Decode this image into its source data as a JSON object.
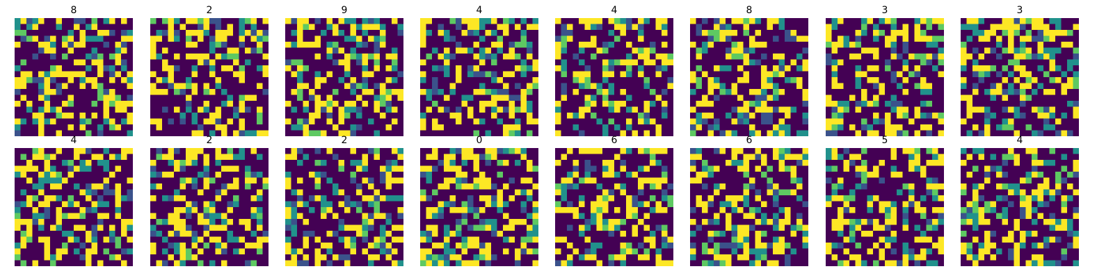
{
  "chart_data": {
    "type": "heatmap",
    "layout": "grid",
    "grid_rows": 2,
    "grid_cols": 8,
    "image_size": [
      20,
      20
    ],
    "colormap": "viridis",
    "colors": [
      "#440154",
      "#3b528b",
      "#21918c",
      "#5ec962",
      "#fde725"
    ],
    "axes": "off",
    "images": [
      {
        "title": "8"
      },
      {
        "title": "2"
      },
      {
        "title": "9"
      },
      {
        "title": "4"
      },
      {
        "title": "4"
      },
      {
        "title": "8"
      },
      {
        "title": "3"
      },
      {
        "title": "3"
      },
      {
        "title": "4"
      },
      {
        "title": "2"
      },
      {
        "title": "2"
      },
      {
        "title": "0"
      },
      {
        "title": "6"
      },
      {
        "title": "6"
      },
      {
        "title": "5"
      },
      {
        "title": "4"
      }
    ]
  }
}
